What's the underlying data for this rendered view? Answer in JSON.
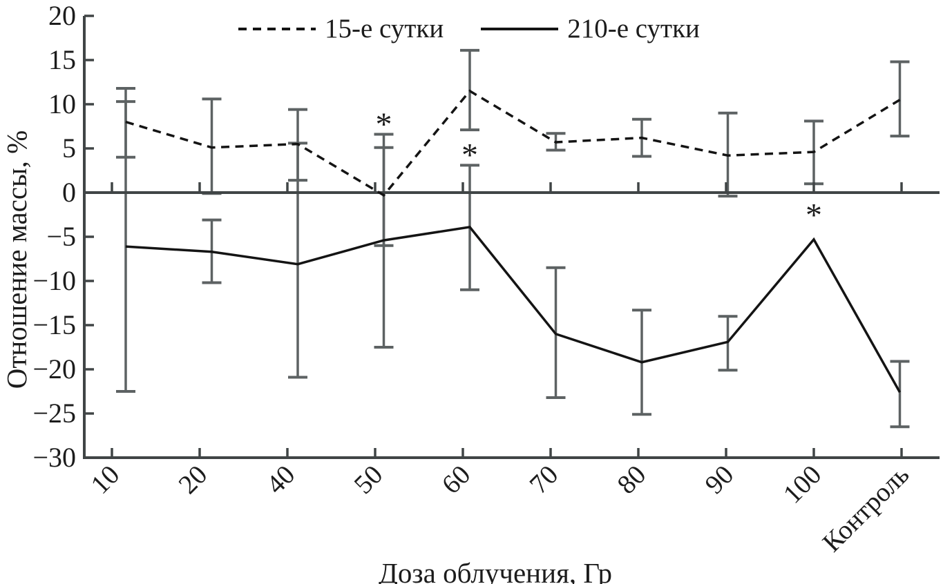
{
  "figure": {
    "legend": [
      {
        "label": "15-е сутки",
        "style": "dashed"
      },
      {
        "label": "210-е сутки",
        "style": "solid"
      }
    ],
    "y_axis": {
      "title": "Отношение массы, %",
      "tick_labels": [
        "20",
        "15",
        "10",
        "5",
        "0",
        "−5",
        "−10",
        "−15",
        "−20",
        "−25",
        "−30"
      ],
      "tick_values": [
        20,
        15,
        10,
        5,
        0,
        -5,
        -10,
        -15,
        -20,
        -25,
        -30
      ]
    },
    "x_axis": {
      "title": "Доза облучения, Гр"
    }
  },
  "chart_data": {
    "type": "line",
    "title": "",
    "xlabel": "Доза облучения, Гр",
    "ylabel": "Отношение массы, %",
    "ylim": [
      -30,
      20
    ],
    "grid": false,
    "legend_position": "top",
    "categories": [
      "10",
      "20",
      "40",
      "50",
      "60",
      "70",
      "80",
      "90",
      "100",
      "Контроль"
    ],
    "series": [
      {
        "name": "15-е сутки",
        "line": "dashed",
        "values": [
          8.0,
          5.1,
          5.5,
          -0.3,
          11.5,
          5.7,
          6.2,
          4.2,
          4.6,
          10.5
        ],
        "err_lo": [
          4.0,
          -0.1,
          1.4,
          -6.0,
          7.1,
          4.8,
          4.1,
          -0.4,
          1.0,
          6.4
        ],
        "err_hi": [
          11.8,
          10.6,
          9.4,
          5.1,
          16.1,
          6.7,
          8.3,
          9.0,
          8.1,
          14.8
        ]
      },
      {
        "name": "210-е сутки",
        "line": "solid",
        "values": [
          -6.1,
          -6.7,
          -8.1,
          -5.4,
          -3.9,
          -16.0,
          -19.2,
          -16.9,
          -5.3,
          -22.6
        ],
        "err_lo": [
          -22.5,
          -10.2,
          -20.9,
          -17.5,
          -11.0,
          -23.2,
          -25.1,
          -20.1,
          null,
          -26.5
        ],
        "err_hi": [
          10.3,
          -3.1,
          5.6,
          6.6,
          3.1,
          -8.5,
          -13.3,
          -14.0,
          null,
          -19.1
        ]
      }
    ],
    "annotations": [
      {
        "category": "50",
        "value": 7.9,
        "symbol": "*"
      },
      {
        "category": "60",
        "value": 4.4,
        "symbol": "*"
      },
      {
        "category": "100",
        "value": -2.4,
        "symbol": "*"
      }
    ]
  },
  "colors": {
    "line": "#141414",
    "error_bar": "#5d6263",
    "axis": "#404546",
    "text": "#1c1c1c",
    "background": "#ffffff"
  }
}
